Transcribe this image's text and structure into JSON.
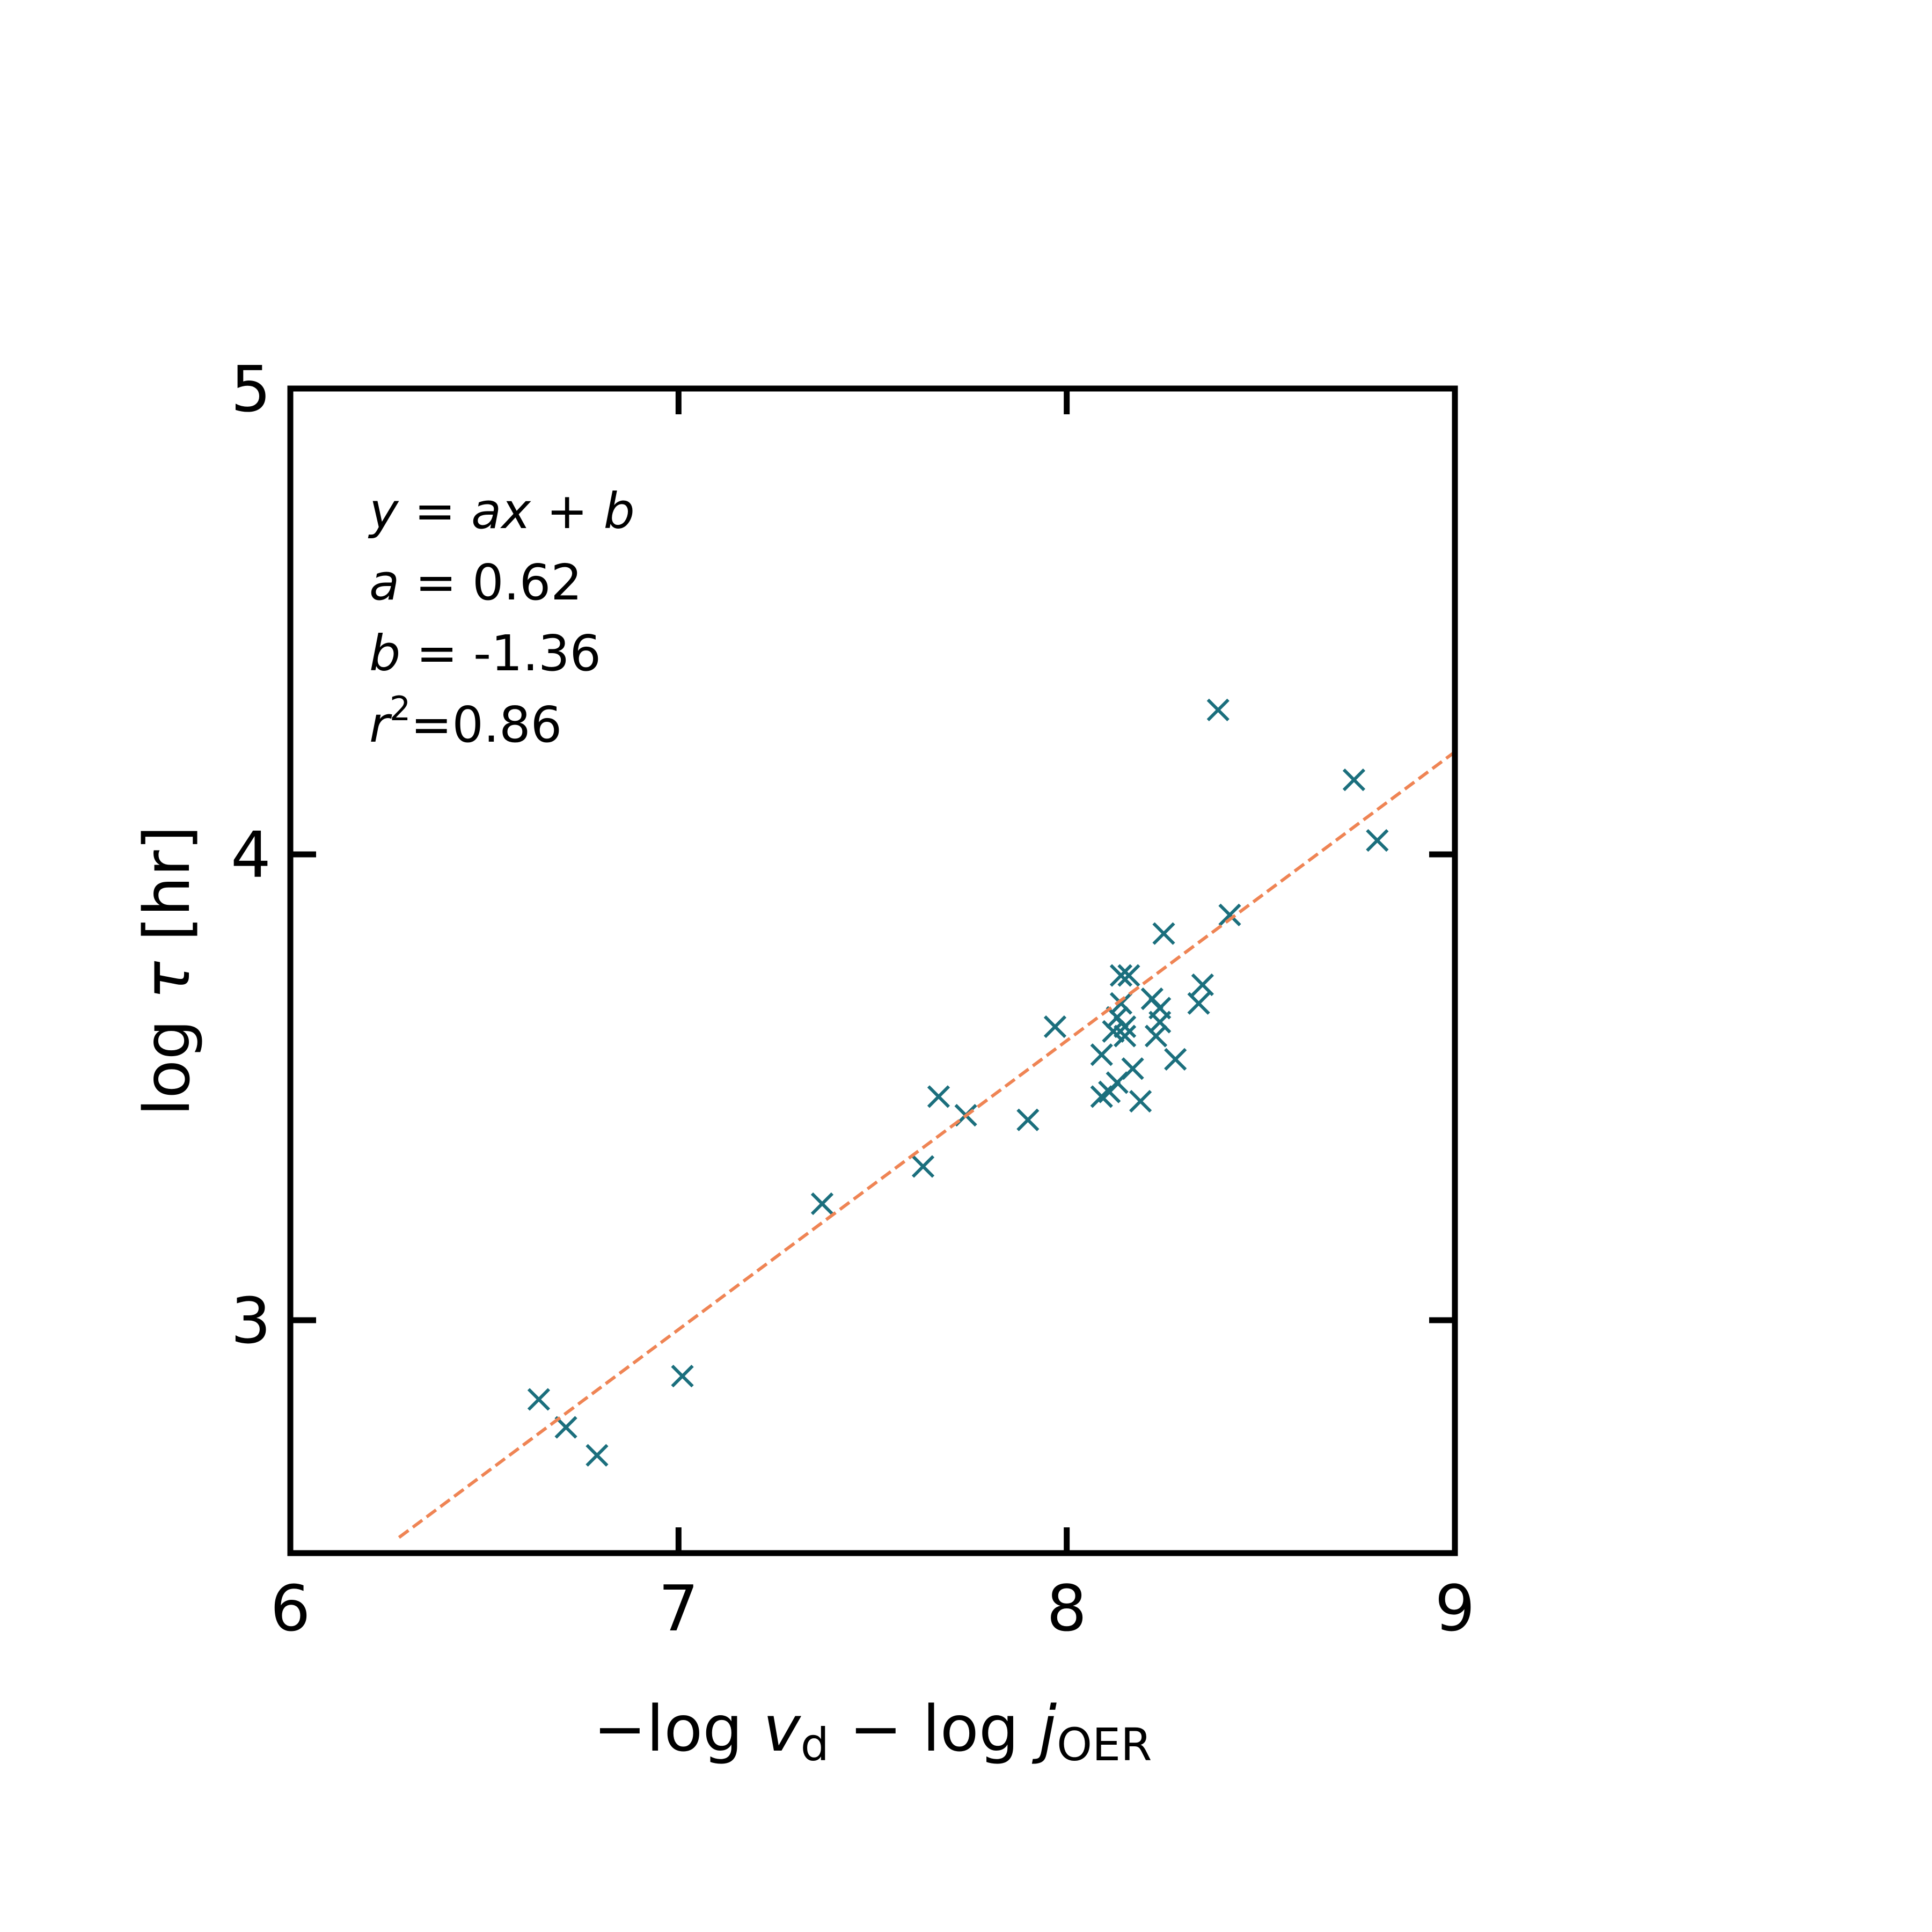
{
  "chart_data": {
    "type": "scatter",
    "xlim": [
      6,
      9
    ],
    "ylim": [
      2.5,
      5
    ],
    "x_ticks": [
      6,
      7,
      8,
      9
    ],
    "y_ticks": [
      3,
      4,
      5
    ],
    "x_tick_labels": [
      "6",
      "7",
      "8",
      "9"
    ],
    "y_tick_labels": [
      "3",
      "4",
      "5"
    ],
    "xlabel": {
      "prefix": "−log ",
      "v": "v",
      "v_sub": "d",
      "mid": " − log ",
      "j": "j",
      "j_sub": "OER"
    },
    "ylabel": {
      "prefix": "log ",
      "tau": "τ",
      "suffix": " [hr]"
    },
    "annotation": {
      "eq_y": "y",
      "eq_mid": " = ",
      "eq_ax": "ax",
      "eq_plus": " + ",
      "eq_b": "b",
      "a_sym": "a",
      "a_val": " = 0.62",
      "b_sym": "b",
      "b_val": " = -1.36",
      "r_sym": "r",
      "r_exp": "2",
      "r_val": "=0.86"
    },
    "fit": {
      "slope": 0.62,
      "intercept": -1.36,
      "x_range": [
        6.28,
        9.0
      ],
      "style": "dashed"
    },
    "grid": false,
    "colors": {
      "points": "#1b6f7d",
      "fit_line": "#ef8454",
      "axes": "#000000"
    },
    "series": [
      {
        "marker": "x",
        "points": [
          [
            6.64,
            2.83
          ],
          [
            6.71,
            2.77
          ],
          [
            6.79,
            2.71
          ],
          [
            7.01,
            2.88
          ],
          [
            7.37,
            3.25
          ],
          [
            7.63,
            3.33
          ],
          [
            7.67,
            3.48
          ],
          [
            7.74,
            3.44
          ],
          [
            7.9,
            3.43
          ],
          [
            7.97,
            3.63
          ],
          [
            8.09,
            3.48
          ],
          [
            8.09,
            3.57
          ],
          [
            8.11,
            3.49
          ],
          [
            8.12,
            3.62
          ],
          [
            8.13,
            3.51
          ],
          [
            8.13,
            3.65
          ],
          [
            8.14,
            3.74
          ],
          [
            8.14,
            3.68
          ],
          [
            8.15,
            3.61
          ],
          [
            8.15,
            3.63
          ],
          [
            8.16,
            3.74
          ],
          [
            8.17,
            3.54
          ],
          [
            8.19,
            3.47
          ],
          [
            8.22,
            3.69
          ],
          [
            8.23,
            3.61
          ],
          [
            8.24,
            3.64
          ],
          [
            8.24,
            3.67
          ],
          [
            8.25,
            3.83
          ],
          [
            8.28,
            3.56
          ],
          [
            8.34,
            3.68
          ],
          [
            8.35,
            3.72
          ],
          [
            8.39,
            4.31
          ],
          [
            8.42,
            3.87
          ],
          [
            8.74,
            4.16
          ],
          [
            8.8,
            4.03
          ]
        ]
      }
    ]
  }
}
